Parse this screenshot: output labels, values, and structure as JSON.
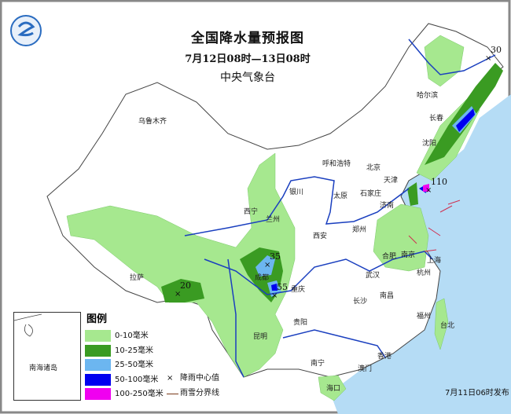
{
  "header": {
    "title": "全国降水量预报图",
    "period": "7月12日08时—13日08时",
    "issuer": "中央气象台"
  },
  "legend": {
    "title": "图例",
    "items": [
      {
        "label": "0-10毫米",
        "color": "#a6e88f"
      },
      {
        "label": "10-25毫米",
        "color": "#3a9b22"
      },
      {
        "label": "25-50毫米",
        "color": "#6cb6f0"
      },
      {
        "label": "50-100毫米",
        "color": "#0000f0"
      },
      {
        "label": "100-250毫米",
        "color": "#f000f0"
      }
    ],
    "center_symbol": "×",
    "center_label": "降雨中心值",
    "rain_snow_label": "雨雪分界线"
  },
  "inset": {
    "label": "南海诸岛"
  },
  "rain_centers": [
    "30",
    "110",
    "35",
    "55",
    "20"
  ],
  "cities": [
    "乌鲁木齐",
    "哈尔滨",
    "长春",
    "沈阳",
    "呼和浩特",
    "北京",
    "天津",
    "银川",
    "太原",
    "石家庄",
    "西宁",
    "兰州",
    "济南",
    "郑州",
    "西安",
    "合肥",
    "南京",
    "上海",
    "杭州",
    "成都",
    "武汉",
    "拉萨",
    "重庆",
    "长沙",
    "南昌",
    "贵阳",
    "福州",
    "台北",
    "昆明",
    "南宁",
    "香港",
    "澳门",
    "海口"
  ],
  "issue_time": "7月11日06时发布",
  "colors": {
    "sea": "#b5dcf5",
    "border": "#555555",
    "river": "#1a3fbf"
  }
}
